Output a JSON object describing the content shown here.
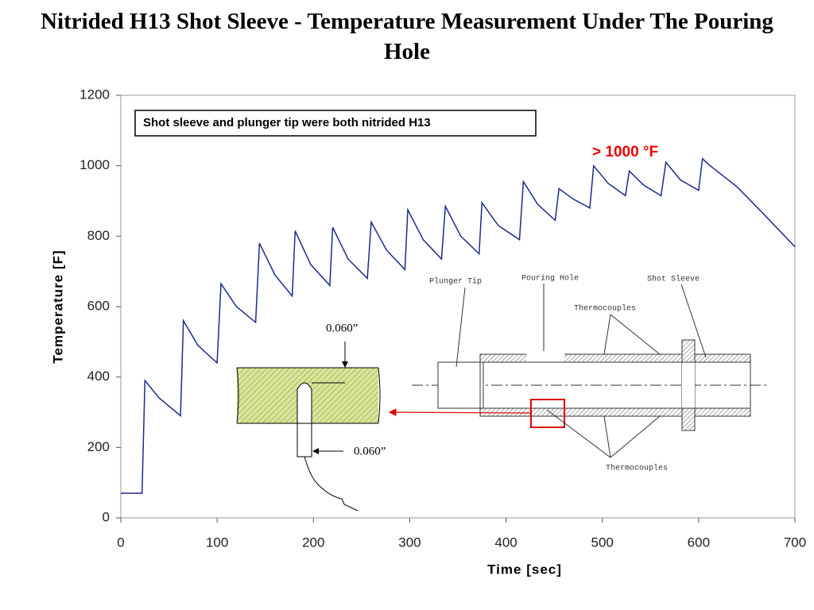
{
  "chart_data": {
    "type": "line",
    "title": "Nitrided H13 Shot Sleeve - Temperature Measurement Under The Pouring Hole",
    "x_label": "Time [sec]",
    "y_label": "Temperature [F]",
    "x": [
      0,
      22,
      25,
      40,
      62,
      65,
      80,
      100,
      104,
      120,
      140,
      144,
      160,
      178,
      181,
      197,
      217,
      220,
      236,
      256,
      260,
      276,
      295,
      298,
      314,
      333,
      337,
      353,
      372,
      375,
      392,
      414,
      418,
      433,
      451,
      455,
      470,
      487,
      491,
      506,
      524,
      528,
      543,
      561,
      566,
      581,
      600,
      604,
      612,
      640,
      665,
      700
    ],
    "values": [
      70,
      70,
      390,
      340,
      290,
      560,
      490,
      440,
      665,
      600,
      555,
      780,
      690,
      630,
      815,
      720,
      660,
      825,
      735,
      680,
      840,
      760,
      705,
      875,
      790,
      735,
      885,
      800,
      750,
      895,
      830,
      790,
      955,
      890,
      845,
      935,
      905,
      880,
      1000,
      950,
      915,
      985,
      945,
      915,
      1010,
      960,
      930,
      1020,
      1000,
      940,
      870,
      770
    ],
    "color": "#1a2a8c",
    "xlim": [
      0,
      700
    ],
    "ylim": [
      0,
      1200
    ],
    "xticks": [
      0,
      100,
      200,
      300,
      400,
      500,
      600,
      700
    ],
    "yticks": [
      0,
      200,
      400,
      600,
      800,
      1000,
      1200
    ],
    "grid": false,
    "annotations": {
      "note": "Shot sleeve and plunger tip were both nitrided H13",
      "callout": "> 1000 °F",
      "plunger_tip": "Plunger Tip",
      "pouring_hole": "Pouring Hole",
      "shot_sleeve": "Shot Sleeve",
      "thermocouples_top": "Thermocouples",
      "thermocouples_bottom": "Thermocouples",
      "depth_top": "0.060”",
      "depth_side": "0.060”"
    }
  }
}
